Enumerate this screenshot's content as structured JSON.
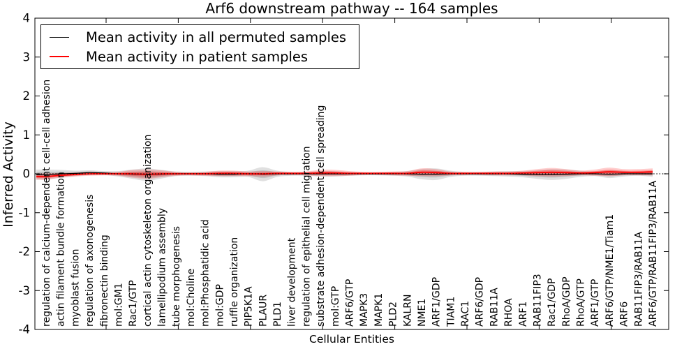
{
  "chart_data": {
    "type": "line",
    "title": "Arf6 downstream pathway -- 164 samples",
    "xlabel": "Cellular Entities",
    "ylabel": "Inferred Activity",
    "ylim": [
      -4,
      4
    ],
    "yticks": [
      4,
      3,
      2,
      1,
      0,
      -1,
      -2,
      -3,
      -4
    ],
    "grid": false,
    "zero_line": "dotted",
    "legend_position": "upper left",
    "x_tick_label_rotation": 90,
    "categories": [
      "regulation of calcium-dependent cell-cell adhesion",
      "actin filament bundle formation",
      "myoblast fusion",
      "regulation of axonogenesis",
      "fibronectin binding",
      "mol:GM1",
      "Rac1/GTP",
      "cortical actin cytoskeleton organization",
      "lamellipodium assembly",
      "tube morphogenesis",
      "mol:Choline",
      "mol:Phosphatidic acid",
      "mol:GDP",
      "ruffle organization",
      "PIP5K1A",
      "PLAUR",
      "PLD1",
      "liver development",
      "regulation of epithelial cell migration",
      "substrate adhesion-dependent cell spreading",
      "mol:GTP",
      "ARF6/GTP",
      "MAPK3",
      "MAPK1",
      "PLD2",
      "KALRN",
      "NME1",
      "ARF1/GDP",
      "TIAM1",
      "RAC1",
      "ARF6/GDP",
      "RAB11A",
      "RHOA",
      "ARF1",
      "RAB11FIP3",
      "Rac1/GDP",
      "RhoA/GDP",
      "RhoA/GTP",
      "ARF1/GTP",
      "ARF6/GTP/NME1/Tiam1",
      "ARF6",
      "RAB11FIP3/RAB11A",
      "ARF6/GTP/RAB11FIP3/RAB11A"
    ],
    "series": [
      {
        "name": "Mean activity in all permuted samples",
        "color": "#000000",
        "band_color": "#000000",
        "mean": [
          -0.02,
          0,
          0.01,
          0.03,
          0.02,
          0,
          -0.01,
          -0.02,
          -0.01,
          0,
          0,
          0,
          -0.01,
          -0.01,
          0,
          -0.01,
          0,
          0,
          0,
          0,
          0,
          0,
          0,
          0,
          0,
          0,
          -0.01,
          -0.01,
          0,
          0,
          0,
          0,
          0,
          -0.01,
          -0.02,
          -0.02,
          -0.01,
          0,
          0,
          -0.01,
          0,
          0,
          0
        ],
        "std": [
          0.13,
          0.1,
          0.07,
          0.06,
          0.05,
          0.07,
          0.12,
          0.16,
          0.11,
          0.06,
          0.05,
          0.06,
          0.08,
          0.08,
          0.08,
          0.18,
          0.08,
          0.05,
          0.05,
          0.07,
          0.07,
          0.05,
          0.04,
          0.04,
          0.05,
          0.07,
          0.13,
          0.15,
          0.08,
          0.05,
          0.05,
          0.06,
          0.07,
          0.08,
          0.11,
          0.14,
          0.12,
          0.08,
          0.06,
          0.1,
          0.07,
          0.05,
          0.08
        ]
      },
      {
        "name": "Mean activity in patient samples",
        "color": "#ff0000",
        "band_color": "#ff0000",
        "mean": [
          -0.07,
          -0.04,
          -0.02,
          0,
          0,
          0,
          0,
          -0.01,
          0,
          0,
          0,
          0,
          0.01,
          0.01,
          0,
          0,
          0.01,
          0.01,
          0.01,
          0.02,
          0.02,
          0.01,
          0.01,
          0.01,
          0.01,
          0.01,
          0.04,
          0.03,
          0.01,
          0.01,
          0.01,
          0.01,
          0.01,
          0.02,
          0.03,
          0.04,
          0.03,
          0.02,
          0.03,
          0.05,
          0.04,
          0.04,
          0.05
        ],
        "std": [
          0.08,
          0.06,
          0.05,
          0.05,
          0.04,
          0.05,
          0.1,
          0.12,
          0.09,
          0.05,
          0.04,
          0.05,
          0.07,
          0.07,
          0.06,
          0.07,
          0.05,
          0.04,
          0.05,
          0.08,
          0.08,
          0.06,
          0.04,
          0.04,
          0.05,
          0.06,
          0.1,
          0.09,
          0.05,
          0.04,
          0.04,
          0.05,
          0.05,
          0.06,
          0.09,
          0.11,
          0.09,
          0.06,
          0.08,
          0.11,
          0.08,
          0.08,
          0.09
        ]
      }
    ]
  }
}
